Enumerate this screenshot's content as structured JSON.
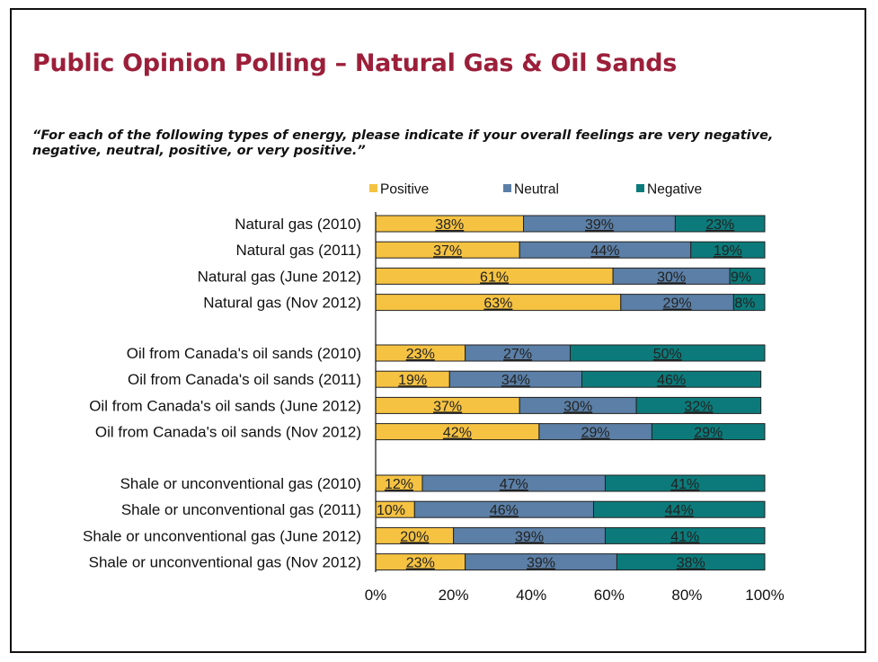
{
  "slide": {
    "title": "Public Opinion Polling – Natural Gas & Oil Sands",
    "question": "“For each of the following types of energy, please indicate if your overall feelings are very negative, negative, neutral, positive, or very positive.”"
  },
  "chart_data": {
    "type": "bar",
    "orientation": "horizontal",
    "stacked": true,
    "categories": [
      "Natural gas (2010)",
      "Natural gas (2011)",
      "Natural gas (June 2012)",
      "Natural gas (Nov 2012)",
      "Oil from Canada's oil sands (2010)",
      "Oil from Canada's oil sands (2011)",
      "Oil from Canada's oil sands (June 2012)",
      "Oil from Canada's oil sands (Nov 2012)",
      "Shale or unconventional gas (2010)",
      "Shale or unconventional gas (2011)",
      "Shale or unconventional gas (June 2012)",
      "Shale or unconventional gas (Nov 2012)"
    ],
    "series": [
      {
        "name": "Positive",
        "color": "#f5c242",
        "values": [
          38,
          37,
          61,
          63,
          23,
          19,
          37,
          42,
          12,
          10,
          20,
          23
        ]
      },
      {
        "name": "Neutral",
        "color": "#5b7fa6",
        "values": [
          39,
          44,
          30,
          29,
          27,
          34,
          30,
          29,
          47,
          46,
          39,
          39
        ]
      },
      {
        "name": "Negative",
        "color": "#0c7a7a",
        "values": [
          23,
          19,
          9,
          8,
          50,
          46,
          32,
          29,
          41,
          44,
          41,
          38
        ]
      }
    ],
    "xlim": [
      0,
      100
    ],
    "x_ticks": [
      "0%",
      "20%",
      "40%",
      "60%",
      "80%",
      "100%"
    ],
    "legend_position": "top",
    "grid": false
  }
}
